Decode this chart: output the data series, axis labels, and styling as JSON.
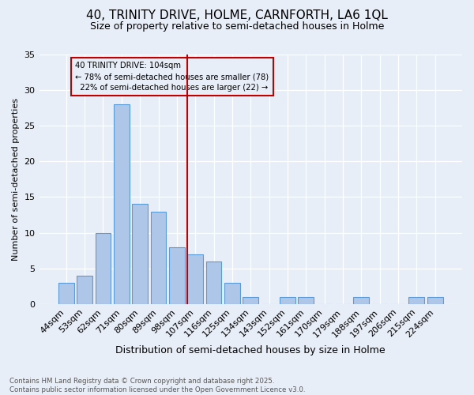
{
  "title": "40, TRINITY DRIVE, HOLME, CARNFORTH, LA6 1QL",
  "subtitle": "Size of property relative to semi-detached houses in Holme",
  "xlabel": "Distribution of semi-detached houses by size in Holme",
  "ylabel": "Number of semi-detached properties",
  "categories": [
    "44sqm",
    "53sqm",
    "62sqm",
    "71sqm",
    "80sqm",
    "89sqm",
    "98sqm",
    "107sqm",
    "116sqm",
    "125sqm",
    "134sqm",
    "143sqm",
    "152sqm",
    "161sqm",
    "170sqm",
    "179sqm",
    "188sqm",
    "197sqm",
    "206sqm",
    "215sqm",
    "224sqm"
  ],
  "values": [
    3,
    4,
    10,
    28,
    14,
    13,
    8,
    7,
    6,
    3,
    1,
    0,
    1,
    1,
    0,
    0,
    1,
    0,
    0,
    1,
    1
  ],
  "bar_color": "#aec6e8",
  "bar_edge_color": "#5b9bd5",
  "property_label": "40 TRINITY DRIVE: 104sqm",
  "pct_smaller": 78,
  "pct_larger": 22,
  "n_smaller": 78,
  "n_larger": 22,
  "vline_x_index": 6.55,
  "vline_color": "#c00000",
  "background_color": "#e8eef7",
  "ylim": [
    0,
    35
  ],
  "yticks": [
    0,
    5,
    10,
    15,
    20,
    25,
    30,
    35
  ],
  "footnote1": "Contains HM Land Registry data © Crown copyright and database right 2025.",
  "footnote2": "Contains public sector information licensed under the Open Government Licence v3.0."
}
